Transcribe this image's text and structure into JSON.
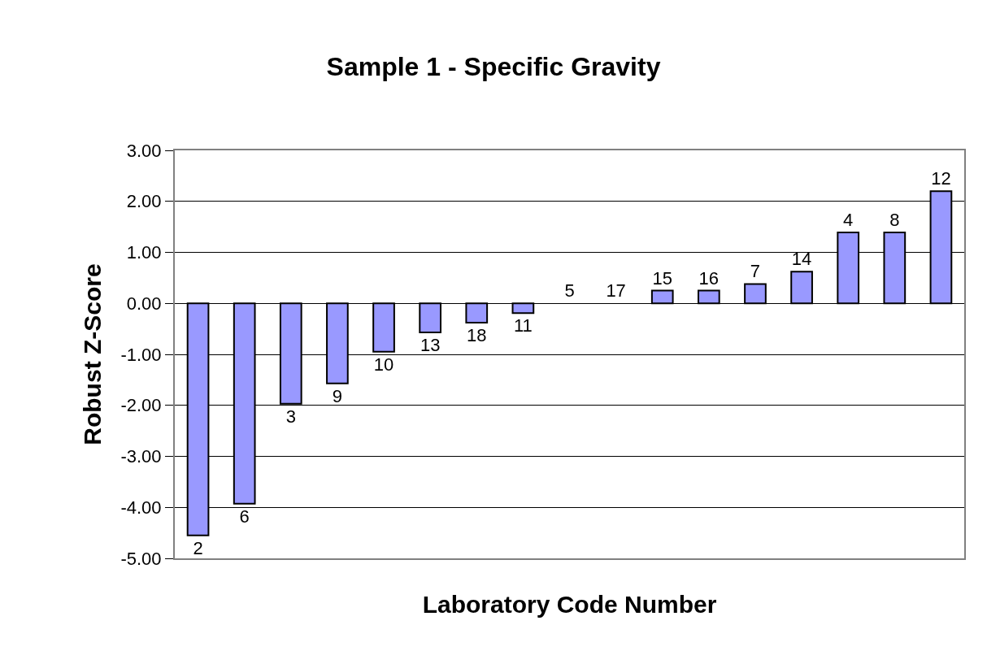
{
  "chart_data": {
    "type": "bar",
    "title": "Sample 1 - Specific Gravity",
    "xlabel": "Laboratory Code Number",
    "ylabel": "Robust Z-Score",
    "categories": [
      "2",
      "6",
      "3",
      "9",
      "10",
      "13",
      "18",
      "11",
      "5",
      "17",
      "15",
      "16",
      "7",
      "14",
      "4",
      "8",
      "12"
    ],
    "values": [
      -4.55,
      -3.93,
      -1.97,
      -1.57,
      -0.95,
      -0.57,
      -0.38,
      -0.19,
      0,
      0,
      0.25,
      0.25,
      0.38,
      0.62,
      1.39,
      1.39,
      2.2
    ],
    "color": "#9999ff",
    "ylim": [
      -5,
      3
    ],
    "yticks": [
      {
        "value": -5,
        "label": "-5.00"
      },
      {
        "value": -4,
        "label": "-4.00"
      },
      {
        "value": -3,
        "label": "-3.00"
      },
      {
        "value": -2,
        "label": "-2.00"
      },
      {
        "value": -1,
        "label": "-1.00"
      },
      {
        "value": 0,
        "label": "0.00"
      },
      {
        "value": 1,
        "label": "1.00"
      },
      {
        "value": 2,
        "label": "2.00"
      },
      {
        "value": 3,
        "label": "3.00"
      }
    ],
    "grid": "y",
    "tick_labels": "y"
  }
}
